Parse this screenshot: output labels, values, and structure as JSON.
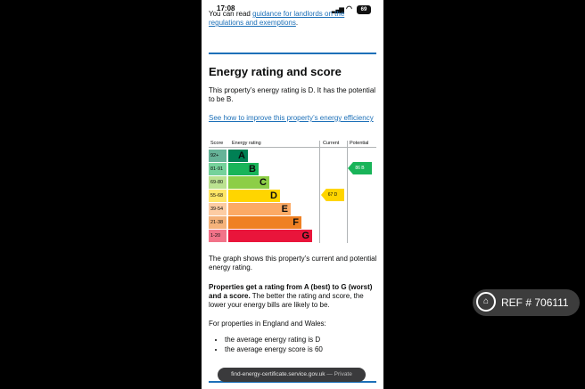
{
  "status_bar": {
    "time": "17:08",
    "battery": "69"
  },
  "intro": {
    "prefix": "You can read ",
    "link": "guidance for landlords on the regulations and exemptions",
    "suffix": "."
  },
  "section_title": "Energy rating and score",
  "rating_sentence": "This property’s energy rating is D. It has the potential to be B.",
  "improve_link": "See how to improve this property’s energy efficiency",
  "chart_data": {
    "type": "table",
    "headers": {
      "score": "Score",
      "rating": "Energy rating",
      "current": "Current",
      "potential": "Potential"
    },
    "bands": [
      {
        "range": "92+",
        "letter": "A",
        "color": "#008054"
      },
      {
        "range": "81-91",
        "letter": "B",
        "color": "#19b459"
      },
      {
        "range": "69-80",
        "letter": "C",
        "color": "#8dce46"
      },
      {
        "range": "55-68",
        "letter": "D",
        "color": "#ffd500"
      },
      {
        "range": "39-54",
        "letter": "E",
        "color": "#fcaa65"
      },
      {
        "range": "21-38",
        "letter": "F",
        "color": "#ef8023"
      },
      {
        "range": "1-20",
        "letter": "G",
        "color": "#e9153b"
      }
    ],
    "current": {
      "score": 67,
      "band": "D",
      "label": "67 D"
    },
    "potential": {
      "score": 86,
      "band": "B",
      "label": "86 B"
    }
  },
  "graph_note": "The graph shows this property’s current and potential energy rating.",
  "bold_text": "Properties get a rating from A (best) to G (worst) and a score.",
  "plain_text": " The better the rating and score, the lower your energy bills are likely to be.",
  "england_wales": "For properties in England and Wales:",
  "bullets": [
    "the average energy rating is D",
    "the average energy score is 60"
  ],
  "url_bar": {
    "domain": "find-energy-certificate.service.gov.uk",
    "privacy": "— Private"
  },
  "ref_badge": {
    "text": "REF # 706111"
  }
}
